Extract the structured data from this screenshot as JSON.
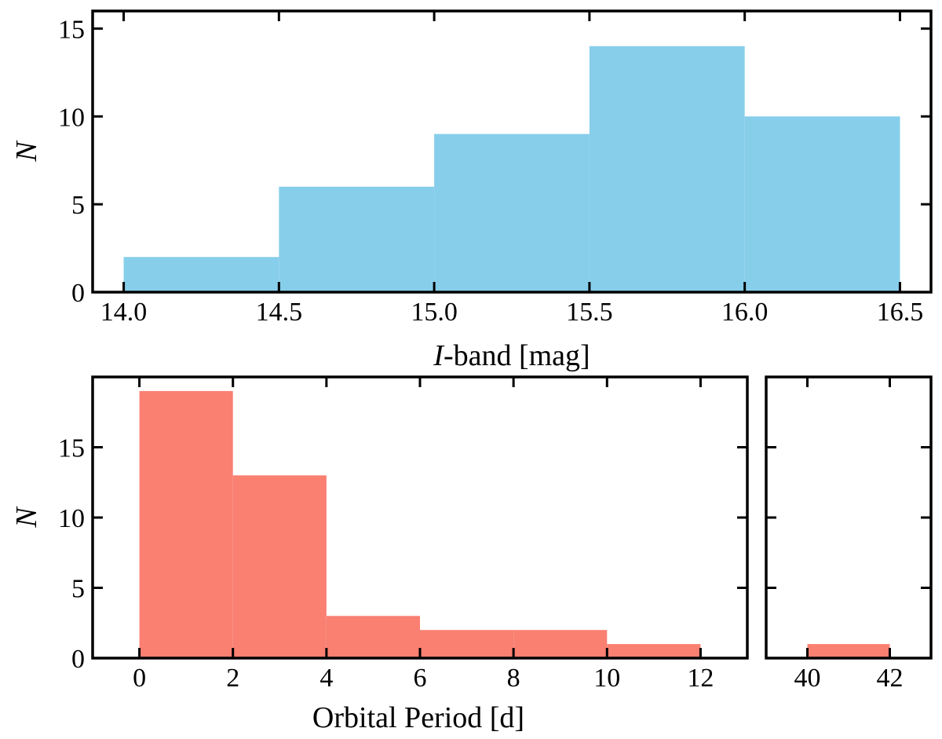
{
  "chart_data": [
    {
      "id": "top",
      "type": "bar",
      "title": "",
      "xlabel_italic": "I",
      "xlabel_rest": "-band [mag]",
      "ylabel": "N",
      "bins": [
        {
          "x0": 14.0,
          "x1": 14.5,
          "value": 2
        },
        {
          "x0": 14.5,
          "x1": 15.0,
          "value": 6
        },
        {
          "x0": 15.0,
          "x1": 15.5,
          "value": 9
        },
        {
          "x0": 15.5,
          "x1": 16.0,
          "value": 14
        },
        {
          "x0": 16.0,
          "x1": 16.5,
          "value": 10
        }
      ],
      "xlim": [
        13.9,
        16.6
      ],
      "ylim": [
        0,
        16
      ],
      "xticks": [
        14.0,
        14.5,
        15.0,
        15.5,
        16.0,
        16.5
      ],
      "xtick_labels": [
        "14.0",
        "14.5",
        "15.0",
        "15.5",
        "16.0",
        "16.5"
      ],
      "yticks": [
        0,
        5,
        10,
        15
      ],
      "ytick_labels": [
        "0",
        "5",
        "10",
        "15"
      ],
      "color": "#87CEEB"
    },
    {
      "id": "bottom-left",
      "type": "bar",
      "title": "",
      "xlabel": "Orbital Period [d]",
      "ylabel": "N",
      "bins": [
        {
          "x0": 0,
          "x1": 2,
          "value": 19
        },
        {
          "x0": 2,
          "x1": 4,
          "value": 13
        },
        {
          "x0": 4,
          "x1": 6,
          "value": 3
        },
        {
          "x0": 6,
          "x1": 8,
          "value": 2
        },
        {
          "x0": 8,
          "x1": 10,
          "value": 2
        },
        {
          "x0": 10,
          "x1": 12,
          "value": 1
        }
      ],
      "xlim": [
        -1,
        13
      ],
      "ylim": [
        0,
        20
      ],
      "xticks": [
        0,
        2,
        4,
        6,
        8,
        10,
        12
      ],
      "xtick_labels": [
        "0",
        "2",
        "4",
        "6",
        "8",
        "10",
        "12"
      ],
      "yticks": [
        0,
        5,
        10,
        15
      ],
      "ytick_labels": [
        "0",
        "5",
        "10",
        "15"
      ],
      "color": "#FA8072"
    },
    {
      "id": "bottom-right",
      "type": "bar",
      "title": "",
      "bins": [
        {
          "x0": 40,
          "x1": 42,
          "value": 1
        }
      ],
      "xlim": [
        39,
        43
      ],
      "ylim": [
        0,
        20
      ],
      "xticks": [
        40,
        42
      ],
      "xtick_labels": [
        "40",
        "42"
      ],
      "yticks": [
        0,
        5,
        10,
        15
      ],
      "color": "#FA8072"
    }
  ]
}
